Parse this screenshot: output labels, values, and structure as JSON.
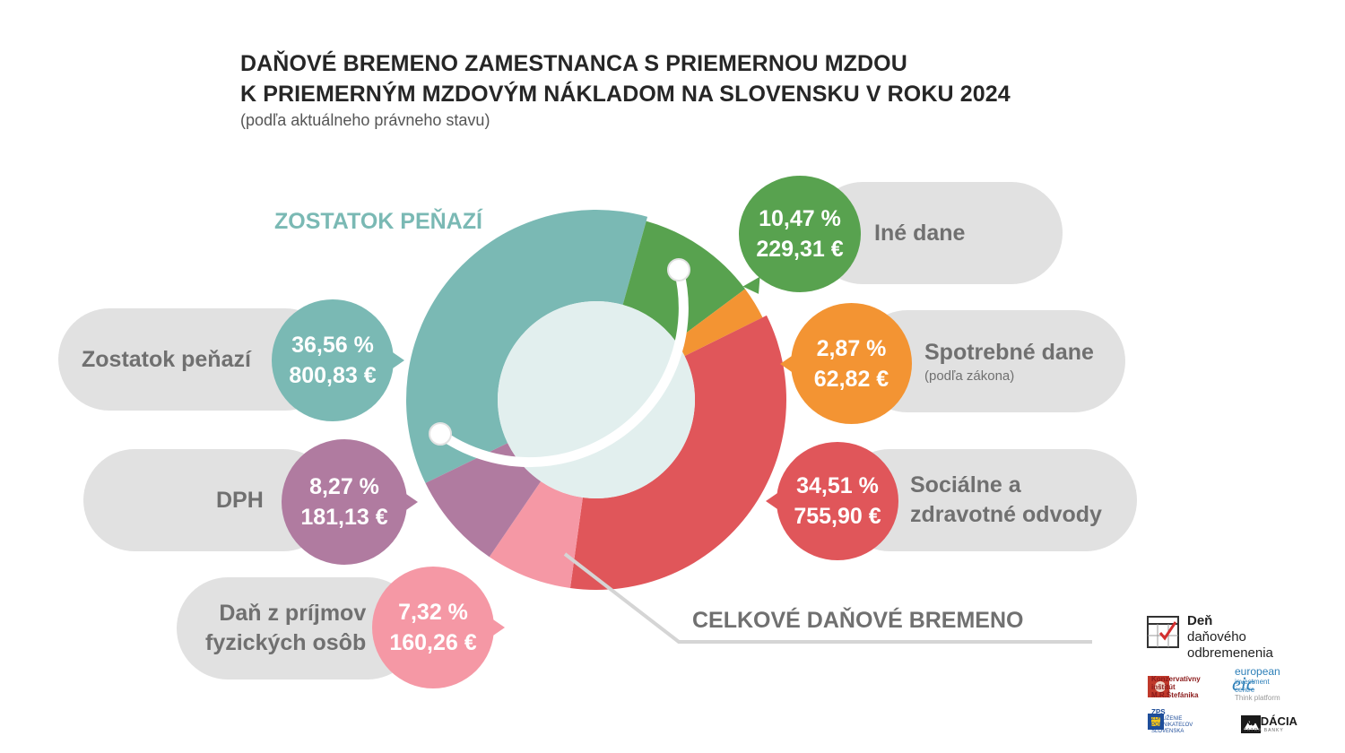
{
  "title": {
    "line1": "DAŇOVÉ BREMENO ZAMESTNANCA S PRIEMERNOU MZDOU",
    "line2": "K PRIEMERNÝM MZDOVÝM NÁKLADOM NA SLOVENSKU V ROKU 2024",
    "subtitle": "(podľa aktuálneho právneho stavu)"
  },
  "labels": {
    "zostatok_heading": "ZOSTATOK PEŇAZÍ",
    "celkove_heading": "CELKOVÉ DAŇOVÉ BREMENO"
  },
  "chart_data": {
    "type": "pie",
    "variant": "donut",
    "start_angle_deg": 244,
    "slices": [
      {
        "key": "zostatok",
        "label": "Zostatok peňazí",
        "percent": 36.56,
        "amount": "800,83 €",
        "percent_text": "36,56 %",
        "color": "#7ab9b4"
      },
      {
        "key": "ine",
        "label": "Iné dane",
        "percent": 10.47,
        "amount": "229,31 €",
        "percent_text": "10,47 %",
        "color": "#58a24f"
      },
      {
        "key": "spotrebne",
        "label": "Spotrebné dane",
        "sublabel": "(podľa zákona)",
        "percent": 2.87,
        "amount": "62,82 €",
        "percent_text": "2,87 %",
        "color": "#f39433"
      },
      {
        "key": "socialne",
        "label": "Sociálne a zdravotné odvody",
        "label_line1": "Sociálne a",
        "label_line2": "zdravotné odvody",
        "percent": 34.51,
        "amount": "755,90 €",
        "percent_text": "34,51 %",
        "color": "#e0565a"
      },
      {
        "key": "dan",
        "label": "Daň z príjmov fyzických osôb",
        "label_line1": "Daň z príjmov",
        "label_line2": "fyzických osôb",
        "percent": 7.32,
        "amount": "160,26 €",
        "percent_text": "7,32 %",
        "color": "#f598a5"
      },
      {
        "key": "dph",
        "label": "DPH",
        "percent": 8.27,
        "amount": "181,13 €",
        "percent_text": "8,27 %",
        "color": "#b07ba0"
      }
    ]
  },
  "logos": {
    "den_line1": "Deň",
    "den_line2": "daňového",
    "den_line3": "odbremenenia",
    "kisl_line1": "Konzervatívny",
    "kisl_line2": "inštitút",
    "kisl_line3": "M.R.Štefánika",
    "eic_mark": "eic",
    "eic_line1": "european",
    "eic_line2": "investment centre",
    "eic_line3": "Think platform",
    "zps_line1": "ZPS",
    "zps_line2": "ZDRUŽENIE PODNIKATEĽOV",
    "zps_line3": "SLOVENSKA",
    "nadacia_line1": "NADÁCIA",
    "nadacia_line2": "TATRA BANKY"
  }
}
